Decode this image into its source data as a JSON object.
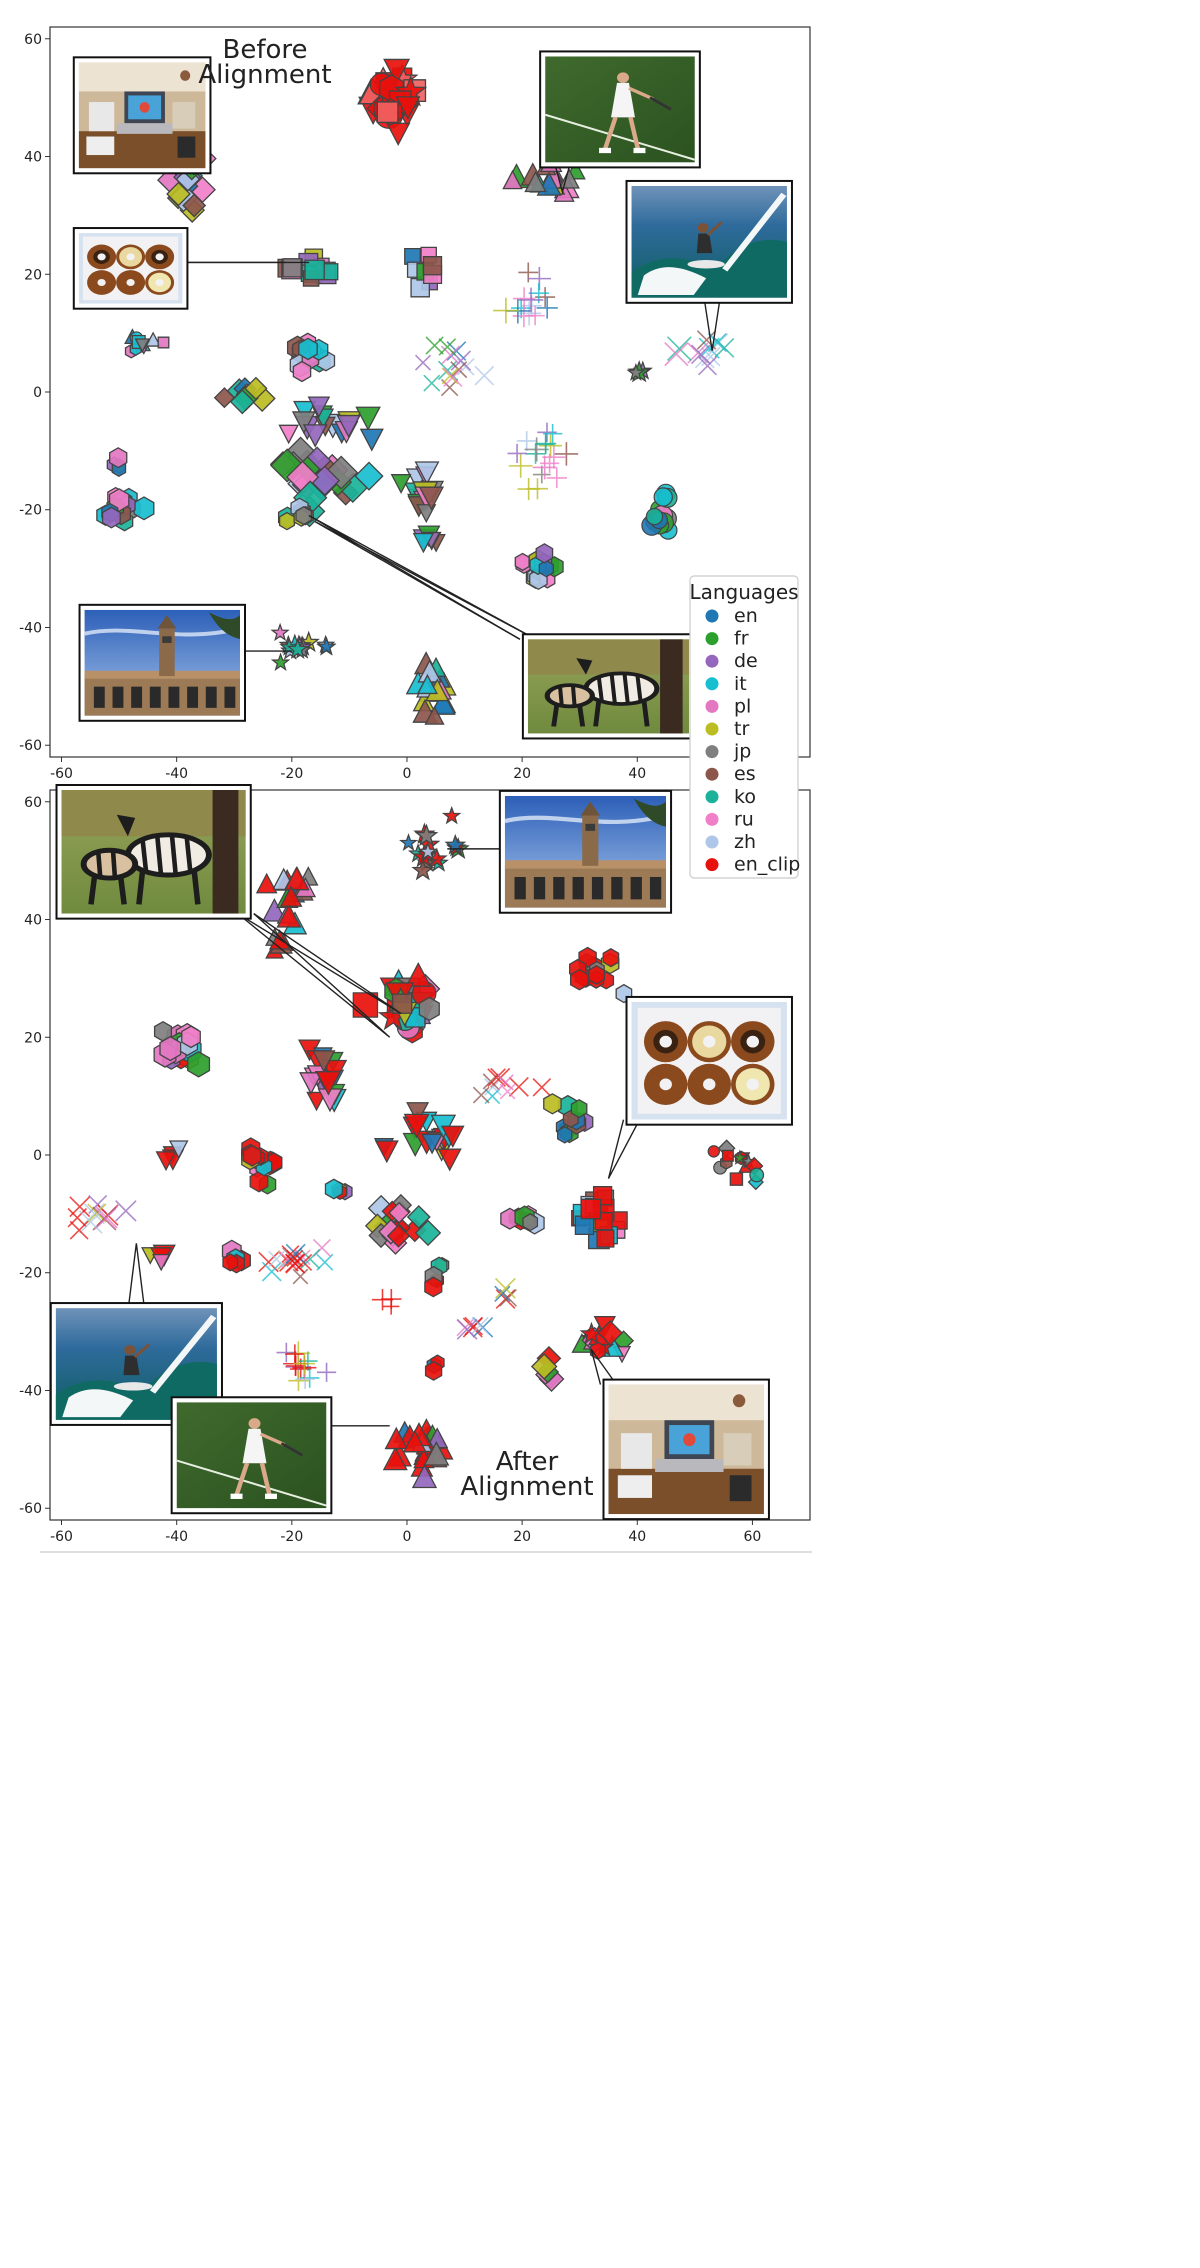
{
  "chart_data": [
    {
      "type": "scatter",
      "title_lines": [
        "Before",
        "Alignment"
      ],
      "xlim": [
        -62,
        70
      ],
      "ylim": [
        -62,
        62
      ],
      "xticks": [
        -60,
        -40,
        -20,
        0,
        20,
        40
      ],
      "yticks": [
        -60,
        -40,
        -20,
        0,
        20,
        40,
        60
      ],
      "grid": false,
      "clusters": [
        {
          "cx": -2,
          "cy": 50,
          "n": 30,
          "sx": 4,
          "sy": 5,
          "marker": "mix",
          "langs": [
            "en_clip"
          ],
          "size": 13
        },
        {
          "cx": -38,
          "cy": 35,
          "n": 14,
          "sx": 2.5,
          "sy": 5,
          "marker": "diamond",
          "size": 11
        },
        {
          "cx": -17,
          "cy": 21,
          "n": 14,
          "sx": 5,
          "sy": 2.5,
          "marker": "square",
          "size": 11
        },
        {
          "cx": 3,
          "cy": 20,
          "n": 9,
          "sx": 3,
          "sy": 3,
          "marker": "square",
          "size": 10
        },
        {
          "cx": 25,
          "cy": 36,
          "n": 16,
          "sx": 5,
          "sy": 3,
          "marker": "triangle-up",
          "size": 11
        },
        {
          "cx": 23,
          "cy": 15,
          "n": 14,
          "sx": 4,
          "sy": 3,
          "marker": "plus",
          "size": 12
        },
        {
          "cx": 53,
          "cy": 7,
          "n": 12,
          "sx": 4,
          "sy": 2.5,
          "marker": "x",
          "size": 12
        },
        {
          "cx": -46,
          "cy": 8,
          "n": 10,
          "sx": 4,
          "sy": 1.5,
          "marker": "mix",
          "size": 7
        },
        {
          "cx": -17,
          "cy": 7,
          "n": 14,
          "sx": 3,
          "sy": 3,
          "marker": "hexagon",
          "size": 11
        },
        {
          "cx": 6,
          "cy": 5,
          "n": 14,
          "sx": 5,
          "sy": 4,
          "marker": "x",
          "size": 10
        },
        {
          "cx": -28,
          "cy": -1,
          "n": 8,
          "sx": 3,
          "sy": 2,
          "marker": "diamond",
          "size": 10
        },
        {
          "cx": -13,
          "cy": -5,
          "n": 16,
          "sx": 6,
          "sy": 3,
          "marker": "triangle-down",
          "size": 11
        },
        {
          "cx": -15,
          "cy": -15,
          "n": 22,
          "sx": 6,
          "sy": 4,
          "marker": "diamond",
          "size": 13
        },
        {
          "cx": -18,
          "cy": -21,
          "n": 8,
          "sx": 2,
          "sy": 2,
          "marker": "hexagon",
          "size": 10
        },
        {
          "cx": 3,
          "cy": -17,
          "n": 14,
          "sx": 3,
          "sy": 4,
          "marker": "triangle-down",
          "size": 11
        },
        {
          "cx": 24,
          "cy": -12,
          "n": 18,
          "sx": 5,
          "sy": 5,
          "marker": "plus",
          "size": 11
        },
        {
          "cx": -50,
          "cy": -19,
          "n": 14,
          "sx": 3,
          "sy": 2.5,
          "marker": "hexagon",
          "size": 11
        },
        {
          "cx": 44,
          "cy": -20,
          "n": 14,
          "sx": 2,
          "sy": 4,
          "marker": "circle",
          "size": 10
        },
        {
          "cx": 23,
          "cy": -30,
          "n": 16,
          "sx": 3,
          "sy": 3,
          "marker": "hexagon",
          "size": 10
        },
        {
          "cx": 3,
          "cy": -25,
          "n": 6,
          "sx": 3,
          "sy": 1.5,
          "marker": "triangle-down",
          "size": 10
        },
        {
          "cx": -18,
          "cy": -43,
          "n": 16,
          "sx": 4,
          "sy": 2,
          "marker": "star",
          "size": 9
        },
        {
          "cx": 5,
          "cy": -50,
          "n": 18,
          "sx": 3,
          "sy": 4,
          "marker": "triangle-up",
          "size": 11
        },
        {
          "cx": -50,
          "cy": -12,
          "n": 4,
          "sx": 1,
          "sy": 1,
          "marker": "hexagon",
          "size": 9
        },
        {
          "cx": 40,
          "cy": 3,
          "n": 3,
          "sx": 1,
          "sy": 1,
          "marker": "star",
          "size": 9
        }
      ],
      "photo_callouts": [
        {
          "photo": "desk",
          "pos": [
            -57,
            56
          ],
          "wh": [
            22,
            18
          ],
          "targets": [
            [
              -37,
              37
            ]
          ]
        },
        {
          "photo": "tennis",
          "pos": [
            24,
            57
          ],
          "wh": [
            26,
            18
          ],
          "targets": [
            [
              27,
              34
            ]
          ]
        },
        {
          "photo": "donuts",
          "pos": [
            -57,
            27
          ],
          "wh": [
            18,
            12
          ],
          "targets": [
            [
              -21,
              22
            ],
            [
              -17,
              22
            ]
          ]
        },
        {
          "photo": "surf",
          "pos": [
            39,
            35
          ],
          "wh": [
            27,
            19
          ],
          "targets": [
            [
              53,
              7
            ]
          ]
        },
        {
          "photo": "tower",
          "pos": [
            -56,
            -37
          ],
          "wh": [
            27,
            18
          ],
          "targets": [
            [
              -20,
              -44
            ]
          ]
        },
        {
          "photo": "zebras",
          "pos": [
            21,
            -42
          ],
          "wh": [
            28,
            16
          ],
          "targets": [
            [
              -17,
              -21
            ],
            [
              -16,
              -22
            ]
          ]
        }
      ]
    },
    {
      "type": "scatter",
      "title_lines": [
        "After",
        "Alignment"
      ],
      "xlim": [
        -62,
        70
      ],
      "ylim": [
        -62,
        62
      ],
      "xticks": [
        -60,
        -40,
        -20,
        0,
        20,
        40,
        60
      ],
      "yticks": [
        -60,
        -40,
        -20,
        0,
        20,
        40,
        60
      ],
      "grid": false,
      "clusters": [
        {
          "cx": 5,
          "cy": 52,
          "n": 16,
          "sx": 4,
          "sy": 4,
          "marker": "star",
          "size": 9
        },
        {
          "cx": -20,
          "cy": 45,
          "n": 16,
          "sx": 4,
          "sy": 4,
          "marker": "triangle-up",
          "size": 11
        },
        {
          "cx": -22,
          "cy": 36,
          "n": 5,
          "sx": 2,
          "sy": 2,
          "marker": "triangle-up",
          "size": 10
        },
        {
          "cx": 0,
          "cy": 25,
          "n": 26,
          "sx": 4,
          "sy": 5,
          "marker": "mix",
          "size": 13
        },
        {
          "cx": 33,
          "cy": 30,
          "n": 16,
          "sx": 4,
          "sy": 3,
          "marker": "hexagon",
          "size": 10
        },
        {
          "cx": -40,
          "cy": 18,
          "n": 18,
          "sx": 3,
          "sy": 3,
          "marker": "hexagon",
          "size": 12
        },
        {
          "cx": -14,
          "cy": 14,
          "n": 18,
          "sx": 3,
          "sy": 5,
          "marker": "triangle-down",
          "size": 11
        },
        {
          "cx": 17,
          "cy": 12,
          "n": 10,
          "sx": 3,
          "sy": 2,
          "marker": "x",
          "size": 10
        },
        {
          "cx": 28,
          "cy": 7,
          "n": 12,
          "sx": 3,
          "sy": 4,
          "marker": "hexagon",
          "size": 10
        },
        {
          "cx": -26,
          "cy": 0,
          "n": 18,
          "sx": 3,
          "sy": 4,
          "marker": "hexagon",
          "size": 10
        },
        {
          "cx": 5,
          "cy": 3,
          "n": 18,
          "sx": 5,
          "sy": 3,
          "marker": "triangle-down",
          "size": 11
        },
        {
          "cx": -41,
          "cy": 0,
          "n": 4,
          "sx": 2,
          "sy": 1,
          "marker": "triangle-down",
          "size": 10
        },
        {
          "cx": 57,
          "cy": -2,
          "n": 14,
          "sx": 4,
          "sy": 3,
          "marker": "mix",
          "size": 7
        },
        {
          "cx": 33,
          "cy": -10,
          "n": 18,
          "sx": 4,
          "sy": 5,
          "marker": "square",
          "size": 11
        },
        {
          "cx": 20,
          "cy": -11,
          "n": 10,
          "sx": 3,
          "sy": 1,
          "marker": "hexagon",
          "size": 10
        },
        {
          "cx": -2,
          "cy": -12,
          "n": 18,
          "sx": 4,
          "sy": 3,
          "marker": "diamond",
          "size": 10
        },
        {
          "cx": -54,
          "cy": -10,
          "n": 12,
          "sx": 4,
          "sy": 3,
          "marker": "x",
          "size": 12
        },
        {
          "cx": -20,
          "cy": -18,
          "n": 18,
          "sx": 4,
          "sy": 3,
          "marker": "x",
          "size": 10
        },
        {
          "cx": -43,
          "cy": -17,
          "n": 4,
          "sx": 2,
          "sy": 1,
          "marker": "triangle-down",
          "size": 10
        },
        {
          "cx": -30,
          "cy": -18,
          "n": 5,
          "sx": 1.5,
          "sy": 2,
          "marker": "hexagon",
          "size": 10
        },
        {
          "cx": -18,
          "cy": -35,
          "n": 14,
          "sx": 4,
          "sy": 3,
          "marker": "plus",
          "size": 12
        },
        {
          "cx": 5,
          "cy": -21,
          "n": 5,
          "sx": 1.5,
          "sy": 1.5,
          "marker": "hexagon",
          "size": 9
        },
        {
          "cx": 12,
          "cy": -29,
          "n": 6,
          "sx": 3,
          "sy": 0.8,
          "marker": "x",
          "size": 10
        },
        {
          "cx": 17,
          "cy": -24,
          "n": 4,
          "sx": 1,
          "sy": 1,
          "marker": "x",
          "size": 10
        },
        {
          "cx": 33,
          "cy": -32,
          "n": 14,
          "sx": 4,
          "sy": 3,
          "marker": "mix",
          "size": 10
        },
        {
          "cx": 25,
          "cy": -36,
          "n": 6,
          "sx": 1.5,
          "sy": 2.5,
          "marker": "diamond",
          "size": 10
        },
        {
          "cx": 3,
          "cy": -50,
          "n": 22,
          "sx": 4,
          "sy": 4,
          "marker": "triangle-up",
          "size": 12
        },
        {
          "cx": -3,
          "cy": -25,
          "n": 3,
          "sx": 1,
          "sy": 1,
          "marker": "plus",
          "size": 10
        },
        {
          "cx": 5,
          "cy": -36,
          "n": 3,
          "sx": 1,
          "sy": 1,
          "marker": "hexagon",
          "size": 9
        },
        {
          "cx": -12,
          "cy": -6,
          "n": 4,
          "sx": 1,
          "sy": 1,
          "marker": "hexagon",
          "size": 9
        }
      ],
      "photo_callouts": [
        {
          "photo": "zebras",
          "pos": [
            -60,
            62
          ],
          "wh": [
            32,
            21
          ],
          "targets": [
            [
              -1,
              24
            ],
            [
              -3,
              20
            ]
          ]
        },
        {
          "photo": "tower",
          "pos": [
            17,
            61
          ],
          "wh": [
            28,
            19
          ],
          "targets": [
            [
              7,
              52
            ]
          ]
        },
        {
          "photo": "donuts",
          "pos": [
            39,
            26
          ],
          "wh": [
            27,
            20
          ],
          "targets": [
            [
              35,
              -4
            ]
          ]
        },
        {
          "photo": "surf",
          "pos": [
            -61,
            -26
          ],
          "wh": [
            28,
            19
          ],
          "targets": [
            [
              -47,
              -15
            ]
          ]
        },
        {
          "photo": "tennis",
          "pos": [
            -40,
            -42
          ],
          "wh": [
            26,
            18
          ],
          "targets": [
            [
              -3,
              -46
            ]
          ]
        },
        {
          "photo": "desk",
          "pos": [
            35,
            -39
          ],
          "wh": [
            27,
            22
          ],
          "targets": [
            [
              32,
              -33
            ]
          ]
        }
      ]
    }
  ],
  "legend": {
    "title": "Languages",
    "items": [
      {
        "label": "en",
        "color": "#1f77b4"
      },
      {
        "label": "fr",
        "color": "#2ca02c"
      },
      {
        "label": "de",
        "color": "#9467bd"
      },
      {
        "label": "it",
        "color": "#17becf"
      },
      {
        "label": "pl",
        "color": "#e377c2"
      },
      {
        "label": "tr",
        "color": "#bcbd22"
      },
      {
        "label": "jp",
        "color": "#7f7f7f"
      },
      {
        "label": "es",
        "color": "#8c564b"
      },
      {
        "label": "ko",
        "color": "#1ab39a"
      },
      {
        "label": "ru",
        "color": "#f07fc8"
      },
      {
        "label": "zh",
        "color": "#aec7e8"
      },
      {
        "label": "en_clip",
        "color": "#e8100c"
      }
    ]
  }
}
